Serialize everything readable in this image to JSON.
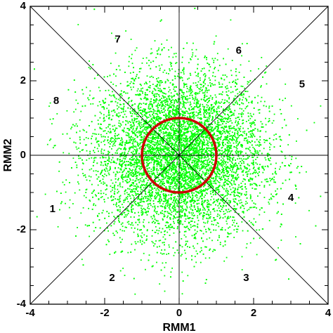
{
  "chart_data": {
    "type": "scatter",
    "xlabel": "RMM1",
    "ylabel": "RMM2",
    "xlim": [
      -4,
      4
    ],
    "ylim": [
      -4,
      4
    ],
    "x_ticks": [
      -4,
      -2,
      0,
      2,
      4
    ],
    "y_ticks": [
      -4,
      -2,
      0,
      2,
      4
    ],
    "grid": false,
    "point_color": "#00ff00",
    "circle": {
      "radius": 1,
      "color": "#cc0000"
    },
    "distribution": {
      "center": [
        0,
        0
      ],
      "std_x": 1.15,
      "std_y": 1.1,
      "approx_points": 9000
    },
    "phase_labels": [
      {
        "text": "1",
        "x": -3.4,
        "y": -1.45
      },
      {
        "text": "2",
        "x": -1.8,
        "y": -3.3
      },
      {
        "text": "3",
        "x": 1.8,
        "y": -3.3
      },
      {
        "text": "4",
        "x": 3.0,
        "y": -1.15
      },
      {
        "text": "5",
        "x": 3.3,
        "y": 1.9
      },
      {
        "text": "6",
        "x": 1.6,
        "y": 2.8
      },
      {
        "text": "7",
        "x": -1.65,
        "y": 3.1
      },
      {
        "text": "8",
        "x": -3.3,
        "y": 1.45
      }
    ]
  }
}
